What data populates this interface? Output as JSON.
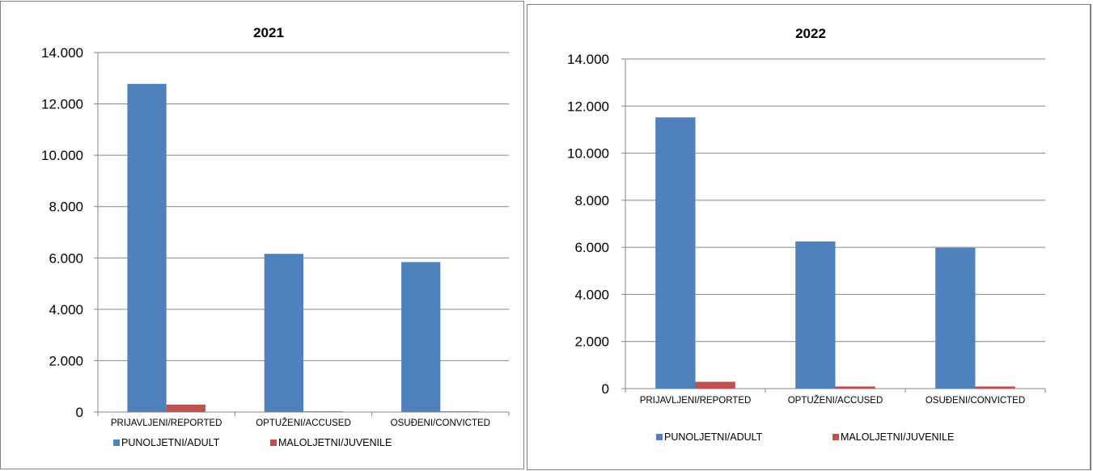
{
  "chart_data": [
    {
      "type": "bar",
      "title": "2021",
      "categories": [
        "PRIJAVLJENI/REPORTED",
        "OPTUŽENI/ACCUSED",
        "OSUĐENI/CONVICTED"
      ],
      "series": [
        {
          "name": "PUNOLJETNI/ADULT",
          "values": [
            12780,
            6160,
            5840
          ],
          "color": "#4f81bd"
        },
        {
          "name": "MALOLJETNI/JUVENILE",
          "values": [
            290,
            25,
            25
          ],
          "color": "#c0504d"
        }
      ],
      "ylim": [
        0,
        14000
      ],
      "yticks": [
        0,
        2000,
        4000,
        6000,
        8000,
        10000,
        12000,
        14000
      ],
      "ytick_labels": [
        "0",
        "2.000",
        "4.000",
        "6.000",
        "8.000",
        "10.000",
        "12.000",
        "14.000"
      ],
      "xlabel": "",
      "ylabel": "",
      "grid": true,
      "legend_position": "bottom"
    },
    {
      "type": "bar",
      "title": "2022",
      "categories": [
        "PRIJAVLJENI/REPORTED",
        "OPTUŽENI/ACCUSED",
        "OSUĐENI/CONVICTED"
      ],
      "series": [
        {
          "name": "PUNOLJETNI/ADULT",
          "values": [
            11520,
            6250,
            5980
          ],
          "color": "#4f81bd"
        },
        {
          "name": "MALOLJETNI/JUVENILE",
          "values": [
            290,
            90,
            90
          ],
          "color": "#c0504d"
        }
      ],
      "ylim": [
        0,
        14000
      ],
      "yticks": [
        0,
        2000,
        4000,
        6000,
        8000,
        10000,
        12000,
        14000
      ],
      "ytick_labels": [
        "0",
        "2.000",
        "4.000",
        "6.000",
        "8.000",
        "10.000",
        "12.000",
        "14.000"
      ],
      "xlabel": "",
      "ylabel": "",
      "grid": true,
      "legend_position": "bottom"
    }
  ]
}
